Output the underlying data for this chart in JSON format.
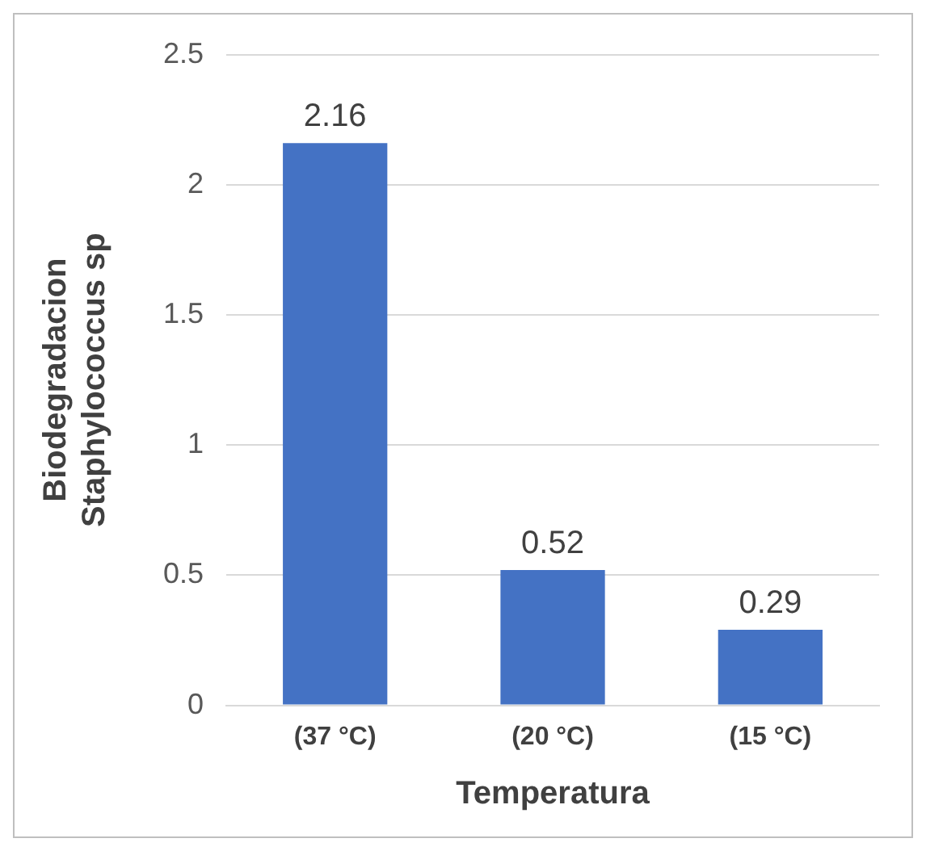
{
  "chart_data": {
    "type": "bar",
    "xlabel": "Temperatura",
    "ylabel": "Biodegradacion\nStaphylococcus sp",
    "categories": [
      "(37 °C)",
      "(20 °C)",
      "(15 °C)"
    ],
    "values": [
      2.16,
      0.52,
      0.29
    ],
    "color": "#4472c4",
    "ylim": [
      0,
      2.5
    ],
    "yticks": [
      0,
      0.5,
      1,
      1.5,
      2,
      2.5
    ],
    "grid": "y",
    "data_labels": true
  }
}
